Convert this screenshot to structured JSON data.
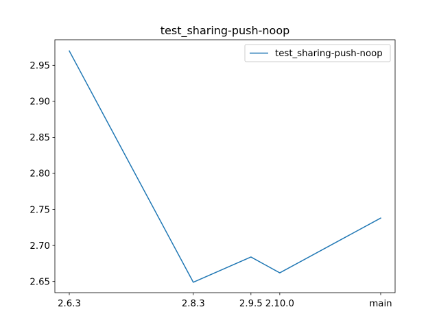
{
  "chart_data": {
    "type": "line",
    "title": "test_sharing-push-noop",
    "xlabel": "",
    "ylabel": "",
    "categories": [
      "2.6.3",
      "2.8.3",
      "2.9.5",
      "2.10.0",
      "main"
    ],
    "x_positions": [
      0,
      4.3,
      6.3,
      7.3,
      10.8
    ],
    "xlim": [
      -0.5,
      11.3
    ],
    "ylim": [
      2.6345,
      2.9855
    ],
    "yticks": [
      2.65,
      2.7,
      2.75,
      2.8,
      2.85,
      2.9,
      2.95
    ],
    "ytick_labels": [
      "2.65",
      "2.70",
      "2.75",
      "2.80",
      "2.85",
      "2.90",
      "2.95"
    ],
    "xtick_labels": [
      "2.6.3",
      "2.8.3",
      "2.9.5",
      "2.10.0",
      "main"
    ],
    "series": [
      {
        "name": "test_sharing-push-noop",
        "color": "#1f77b4",
        "values": [
          2.97,
          2.649,
          2.684,
          2.662,
          2.738
        ]
      }
    ],
    "grid": false,
    "legend_position": "upper right"
  }
}
